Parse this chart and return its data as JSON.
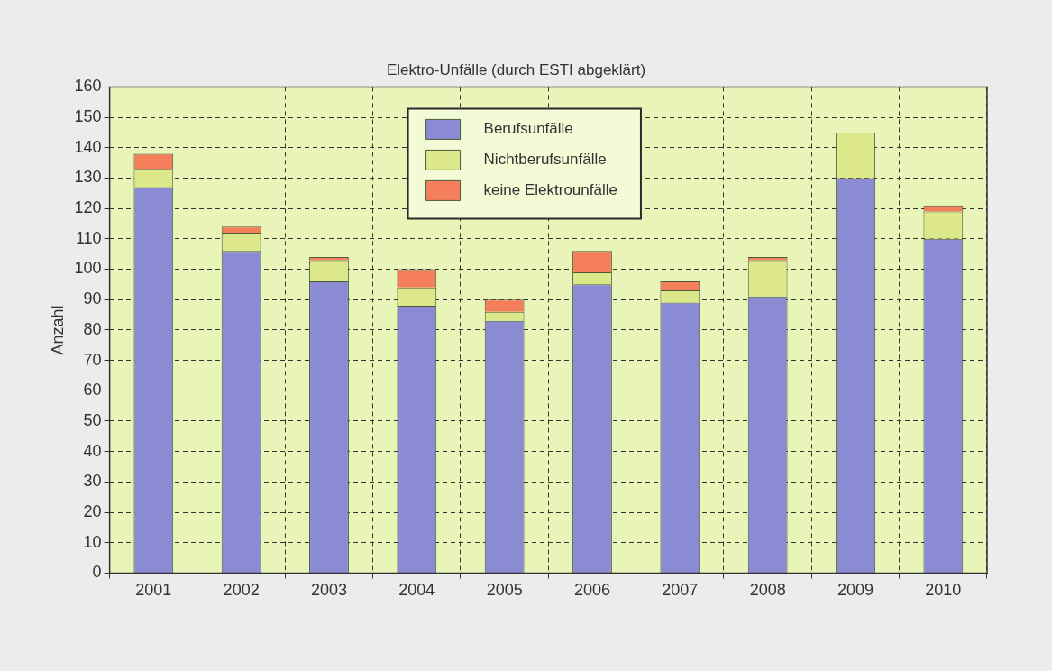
{
  "chart_data": {
    "type": "bar",
    "title": "Elektro-Unfälle (durch ESTI abgeklärt)",
    "ylabel": "Anzahl",
    "categories": [
      "2001",
      "2002",
      "2003",
      "2004",
      "2005",
      "2006",
      "2007",
      "2008",
      "2009",
      "2010"
    ],
    "stacked": true,
    "series": [
      {
        "name": "Berufsunfälle",
        "color": "#8b8bd4",
        "values": [
          127,
          106,
          96,
          88,
          83,
          95,
          89,
          91,
          130,
          110
        ]
      },
      {
        "name": "Nichtberufsunfälle",
        "color": "#dde88a",
        "values": [
          6,
          6,
          7,
          6,
          3,
          4,
          4,
          12,
          15,
          9
        ]
      },
      {
        "name": "keine Elektrounfälle",
        "color": "#f47f5a",
        "values": [
          5,
          2,
          1,
          6,
          4,
          7,
          3,
          1,
          0,
          2
        ]
      }
    ],
    "ylim": [
      0,
      160
    ],
    "yticks": [
      0,
      10,
      20,
      30,
      40,
      50,
      60,
      70,
      80,
      90,
      100,
      110,
      120,
      130,
      140,
      150,
      160
    ],
    "grid": true,
    "legend": "top"
  }
}
